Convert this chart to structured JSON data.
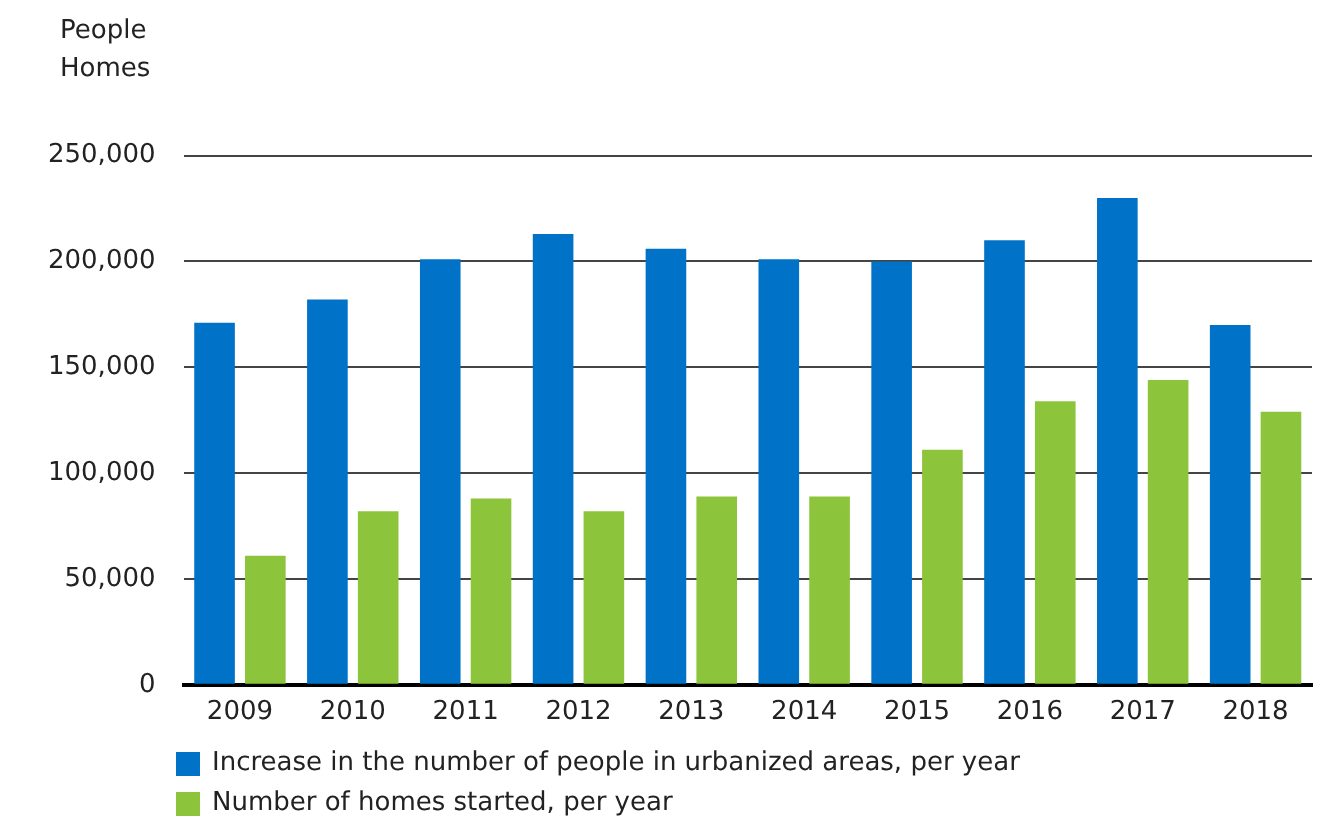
{
  "chart_data": {
    "type": "bar",
    "ylabel": "People\nHomes",
    "categories": [
      "2009",
      "2010",
      "2011",
      "2012",
      "2013",
      "2014",
      "2015",
      "2016",
      "2017",
      "2018"
    ],
    "series": [
      {
        "name": "Increase in the number of people in urbanized areas, per year",
        "color": "#0073c8",
        "values": [
          171000,
          182000,
          201000,
          213000,
          206000,
          201000,
          200000,
          210000,
          230000,
          170000
        ]
      },
      {
        "name": "Number of homes started, per year",
        "color": "#8cc43c",
        "values": [
          61000,
          82000,
          88000,
          82000,
          89000,
          89000,
          111000,
          134000,
          144000,
          129000
        ]
      }
    ],
    "ylim": [
      0,
      250000
    ],
    "yticks": [
      {
        "value": 0,
        "label": "0"
      },
      {
        "value": 50000,
        "label": "50,000"
      },
      {
        "value": 100000,
        "label": "100,000"
      },
      {
        "value": 150000,
        "label": "150,000"
      },
      {
        "value": 200000,
        "label": "200,000"
      },
      {
        "value": 250000,
        "label": "250,000"
      }
    ],
    "grid": "y",
    "legend": "bottom"
  }
}
